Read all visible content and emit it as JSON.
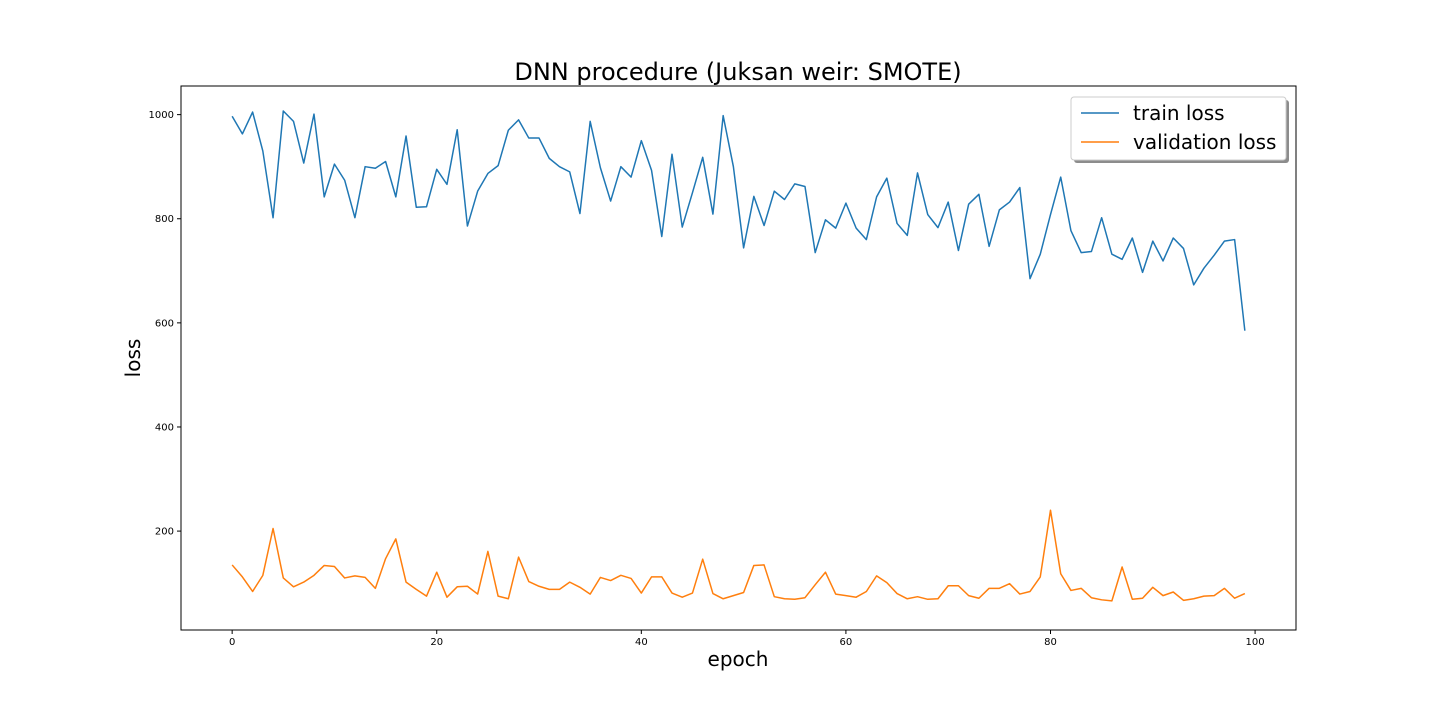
{
  "chart_data": {
    "type": "line",
    "title": "DNN procedure (Juksan weir: SMOTE)",
    "xlabel": "epoch",
    "ylabel": "loss",
    "xlim": [
      -5,
      104
    ],
    "ylim": [
      10,
      1055
    ],
    "x_ticks": [
      0,
      20,
      40,
      60,
      80,
      100
    ],
    "y_ticks": [
      200,
      400,
      600,
      800,
      1000
    ],
    "grid": false,
    "legend_position": "upper right",
    "x": [
      0,
      1,
      2,
      3,
      4,
      5,
      6,
      7,
      8,
      9,
      10,
      11,
      12,
      13,
      14,
      15,
      16,
      17,
      18,
      19,
      20,
      21,
      22,
      23,
      24,
      25,
      26,
      27,
      28,
      29,
      30,
      31,
      32,
      33,
      34,
      35,
      36,
      37,
      38,
      39,
      40,
      41,
      42,
      43,
      44,
      45,
      46,
      47,
      48,
      49,
      50,
      51,
      52,
      53,
      54,
      55,
      56,
      57,
      58,
      59,
      60,
      61,
      62,
      63,
      64,
      65,
      66,
      67,
      68,
      69,
      70,
      71,
      72,
      73,
      74,
      75,
      76,
      77,
      78,
      79,
      80,
      81,
      82,
      83,
      84,
      85,
      86,
      87,
      88,
      89,
      90,
      91,
      92,
      93,
      94,
      95,
      96,
      97,
      98,
      99
    ],
    "series": [
      {
        "name": "train loss",
        "color": "#1f77b4",
        "values": [
          997,
          963,
          1005,
          930,
          802,
          1007,
          987,
          907,
          1001,
          842,
          905,
          874,
          802,
          900,
          897,
          910,
          842,
          959,
          822,
          823,
          895,
          866,
          971,
          786,
          853,
          887,
          902,
          970,
          990,
          955,
          955,
          916,
          900,
          890,
          810,
          987,
          898,
          834,
          900,
          880,
          950,
          893,
          766,
          924,
          784,
          850,
          918,
          809,
          998,
          900,
          744,
          843,
          787,
          853,
          837,
          867,
          862,
          735,
          798,
          782,
          830,
          782,
          760,
          842,
          878,
          791,
          768,
          888,
          808,
          783,
          832,
          739,
          828,
          847,
          747,
          817,
          832,
          860,
          685,
          732,
          808,
          880,
          777,
          735,
          737,
          802,
          732,
          722,
          763,
          697,
          757,
          719,
          763,
          743,
          673,
          705,
          730,
          757,
          760,
          585
        ]
      },
      {
        "name": "validation loss",
        "color": "#ff7f0e",
        "values": [
          135,
          112,
          84,
          115,
          205,
          110,
          93,
          102,
          115,
          134,
          132,
          110,
          114,
          111,
          90,
          147,
          185,
          102,
          88,
          75,
          121,
          73,
          93,
          94,
          79,
          161,
          75,
          70,
          150,
          103,
          94,
          88,
          88,
          102,
          92,
          79,
          111,
          105,
          115,
          109,
          81,
          112,
          112,
          81,
          73,
          81,
          146,
          80,
          70,
          76,
          82,
          134,
          135,
          74,
          70,
          69,
          72,
          97,
          121,
          79,
          76,
          73,
          84,
          114,
          101,
          80,
          70,
          74,
          69,
          70,
          95,
          95,
          76,
          71,
          90,
          90,
          99,
          79,
          84,
          112,
          240,
          118,
          86,
          90,
          72,
          68,
          66,
          131,
          69,
          71,
          92,
          76,
          83,
          67,
          70,
          75,
          76,
          90,
          71,
          80
        ]
      }
    ]
  }
}
